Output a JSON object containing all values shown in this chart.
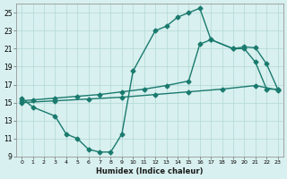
{
  "line1_x": [
    0,
    1,
    3,
    4,
    5,
    6,
    7,
    8,
    9,
    10,
    12,
    13,
    14,
    15,
    16,
    17,
    19,
    20,
    21,
    22,
    23
  ],
  "line1_y": [
    15.5,
    14.5,
    13.5,
    11.5,
    11.0,
    9.8,
    9.5,
    9.5,
    11.5,
    18.5,
    23.0,
    23.5,
    24.5,
    25.0,
    25.5,
    22.0,
    21.0,
    21.0,
    19.5,
    16.5,
    16.5
  ],
  "line2_x": [
    0,
    1,
    3,
    5,
    7,
    9,
    11,
    13,
    15,
    16,
    17,
    19,
    20,
    21,
    22,
    23
  ],
  "line2_y": [
    15.2,
    15.3,
    15.5,
    15.7,
    15.9,
    16.2,
    16.5,
    16.9,
    17.4,
    21.5,
    22.0,
    21.0,
    21.2,
    21.1,
    19.3,
    16.5
  ],
  "line3_x": [
    0,
    3,
    6,
    9,
    12,
    15,
    18,
    21,
    23
  ],
  "line3_y": [
    15.0,
    15.2,
    15.4,
    15.6,
    15.9,
    16.2,
    16.5,
    16.9,
    16.4
  ],
  "color": "#1a7a6e",
  "bg_color": "#d8f0ef",
  "plot_bg": "#d8f0ef",
  "grid_color": "#b0d8d5",
  "xlabel": "Humidex (Indice chaleur)",
  "xlim": [
    -0.5,
    23.5
  ],
  "ylim": [
    9,
    26
  ],
  "yticks": [
    9,
    11,
    13,
    15,
    17,
    19,
    21,
    23,
    25
  ],
  "xticks": [
    0,
    1,
    2,
    3,
    4,
    5,
    6,
    7,
    8,
    9,
    10,
    11,
    12,
    13,
    14,
    15,
    16,
    17,
    18,
    19,
    20,
    21,
    22,
    23
  ],
  "xtick_labels": [
    "0",
    "1",
    "2",
    "3",
    "4",
    "5",
    "6",
    "7",
    "8",
    "9",
    "10",
    "11",
    "12",
    "13",
    "14",
    "15",
    "16",
    "17",
    "18",
    "19",
    "20",
    "21",
    "22",
    "23"
  ],
  "marker": "D",
  "markersize": 2.5,
  "linewidth": 1.0
}
